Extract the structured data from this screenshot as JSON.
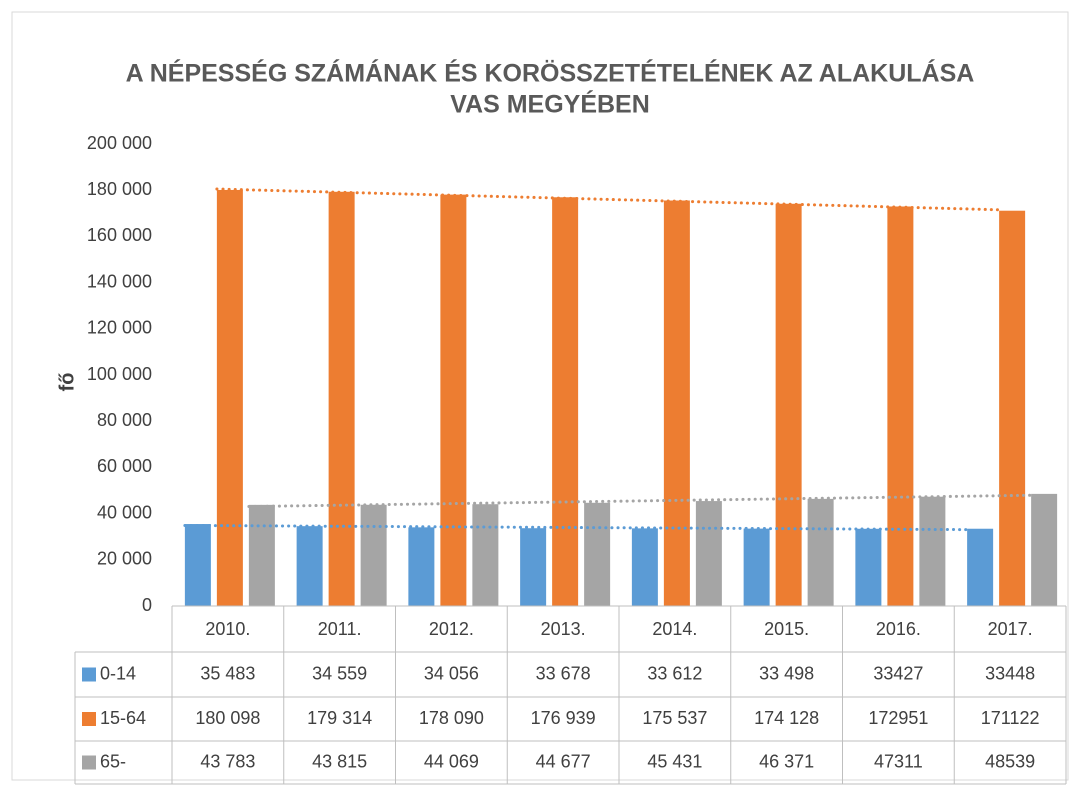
{
  "chart_data": {
    "type": "bar",
    "title": "A NÉPESSÉG SZÁMÁNAK ÉS KORÖSSZETÉTELÉNEK AZ ALAKULÁSA",
    "subtitle": "VAS MEGYÉBEN",
    "y_label": "fő",
    "categories": [
      "2010.",
      "2011.",
      "2012.",
      "2013.",
      "2014.",
      "2015.",
      "2016.",
      "2017."
    ],
    "series": [
      {
        "name": "0-14",
        "color": "#5b9bd5",
        "values": [
          35483,
          34559,
          34056,
          33678,
          33612,
          33498,
          33427,
          33448
        ],
        "value_labels": [
          "35 483",
          "34 559",
          "34 056",
          "33 678",
          "33 612",
          "33 498",
          "33427",
          "33448"
        ]
      },
      {
        "name": "15-64",
        "color": "#ed7d31",
        "values": [
          180098,
          179314,
          178090,
          176939,
          175537,
          174128,
          172951,
          171122
        ],
        "value_labels": [
          "180 098",
          "179 314",
          "178 090",
          "176 939",
          "175 537",
          "174 128",
          "172951",
          "171122"
        ]
      },
      {
        "name": "65-",
        "color": "#a5a5a5",
        "values": [
          43783,
          43815,
          44069,
          44677,
          45431,
          46371,
          47311,
          48539
        ],
        "value_labels": [
          "43 783",
          "43 815",
          "44 069",
          "44 677",
          "45 431",
          "46 371",
          "47311",
          "48539"
        ]
      }
    ],
    "ylim": [
      0,
      200000
    ],
    "yticks": [
      0,
      {
        "value": 20000,
        "label": "20 000"
      },
      {
        "value": 40000,
        "label": "40 000"
      },
      {
        "value": 60000,
        "label": "60 000"
      },
      {
        "value": 80000,
        "label": "80 000"
      },
      {
        "value": 100000,
        "label": "100 000"
      },
      {
        "value": 120000,
        "label": "120 000"
      },
      {
        "value": 140000,
        "label": "140 000"
      },
      {
        "value": 160000,
        "label": "160 000"
      },
      {
        "value": 180000,
        "label": "180 000"
      },
      {
        "value": 200000,
        "label": "200 000"
      }
    ],
    "grid": false,
    "trendline": true,
    "data_table": true
  }
}
